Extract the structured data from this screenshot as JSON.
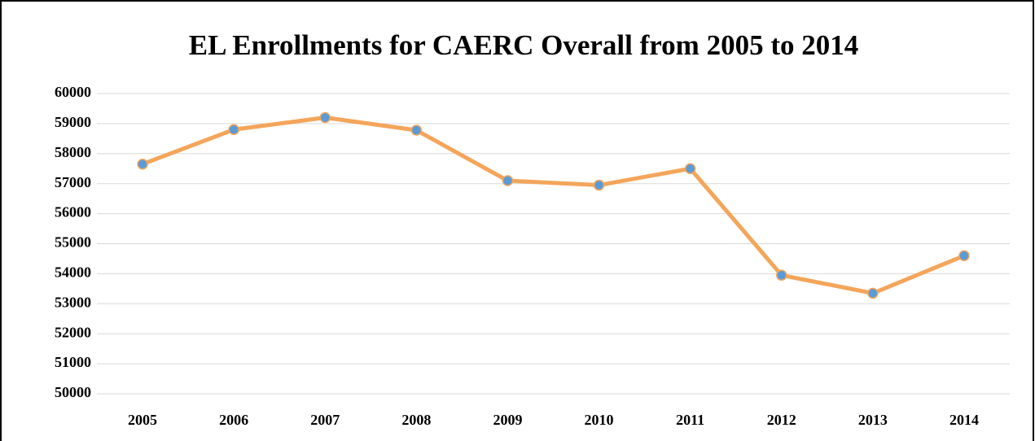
{
  "chart_data": {
    "type": "line",
    "title": "EL Enrollments for CAERC Overall from 2005 to 2014",
    "categories": [
      "2005",
      "2006",
      "2007",
      "2008",
      "2009",
      "2010",
      "2011",
      "2012",
      "2013",
      "2014"
    ],
    "series": [
      {
        "name": "EL Enrollments",
        "color": "#f4a55a",
        "marker_color": "#5b9bd5",
        "values": [
          57650,
          58800,
          59200,
          58780,
          57100,
          56950,
          57500,
          53950,
          53350,
          54600
        ]
      }
    ],
    "ylim": [
      50000,
      60000
    ],
    "yticks": [
      50000,
      51000,
      52000,
      53000,
      54000,
      55000,
      56000,
      57000,
      58000,
      59000,
      60000
    ],
    "grid": true,
    "legend": false
  }
}
